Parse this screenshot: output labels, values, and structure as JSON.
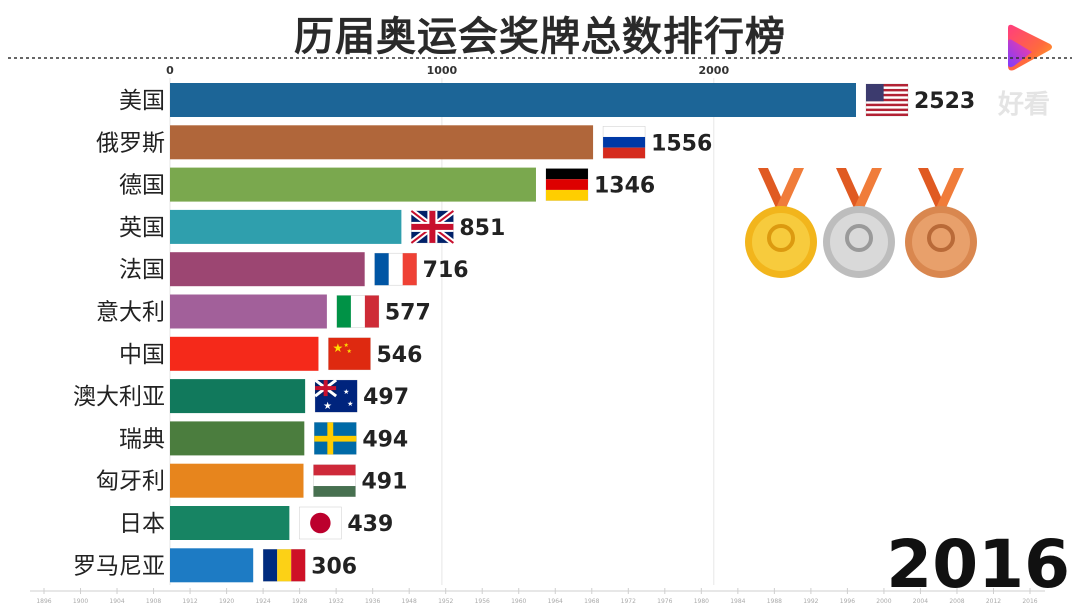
{
  "title": "历届奥运会奖牌总数排行榜",
  "year": "2016",
  "watermark": "好看",
  "chart_data": {
    "type": "bar",
    "orientation": "horizontal",
    "xlim": [
      0,
      2523
    ],
    "xticks": [
      0,
      1000,
      2000
    ],
    "categories": [
      "美国",
      "俄罗斯",
      "德国",
      "英国",
      "法国",
      "意大利",
      "中国",
      "澳大利亚",
      "瑞典",
      "匈牙利",
      "日本",
      "罗马尼亚"
    ],
    "values": [
      2523,
      1556,
      1346,
      851,
      716,
      577,
      546,
      497,
      494,
      491,
      439,
      306
    ],
    "colors": [
      "#1c6597",
      "#b0663a",
      "#7aa84e",
      "#2f9fad",
      "#9c4672",
      "#a2609a",
      "#f5291a",
      "#11795c",
      "#4b7d3e",
      "#e7851d",
      "#178463",
      "#1d7bc4"
    ],
    "flags": [
      "usa-flag",
      "russia-flag",
      "germany-flag",
      "uk-flag",
      "france-flag",
      "italy-flag",
      "china-flag",
      "australia-flag",
      "sweden-flag",
      "hungary-flag",
      "japan-flag",
      "romania-flag"
    ],
    "timeline": [
      "1896",
      "1900",
      "1904",
      "1908",
      "1912",
      "1920",
      "1924",
      "1928",
      "1932",
      "1936",
      "1948",
      "1952",
      "1956",
      "1960",
      "1964",
      "1968",
      "1972",
      "1976",
      "1980",
      "1984",
      "1988",
      "1992",
      "1996",
      "2000",
      "2004",
      "2008",
      "2012",
      "2016"
    ]
  },
  "medals": [
    "gold-medal-icon",
    "silver-medal-icon",
    "bronze-medal-icon"
  ]
}
